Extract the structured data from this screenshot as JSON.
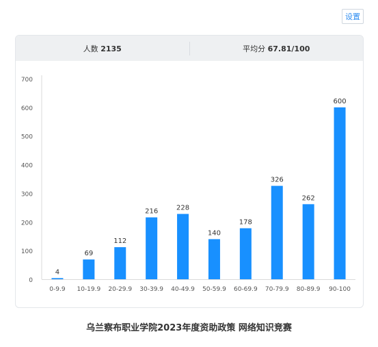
{
  "settings_label": "设置",
  "stats": {
    "count_label": "人数",
    "count_value": "2135",
    "avg_label": "平均分",
    "avg_value": "67.81/100"
  },
  "caption": "乌兰察布职业学院2023年度资助政策 网络知识竞赛",
  "colors": {
    "bar": "#1890ff",
    "grid": "#e8e8e8",
    "axis_text": "#555555"
  },
  "chart_data": {
    "type": "bar",
    "categories": [
      "0-9.9",
      "10-19.9",
      "20-29.9",
      "30-39.9",
      "40-49.9",
      "50-59.9",
      "60-69.9",
      "70-79.9",
      "80-89.9",
      "90-100"
    ],
    "values": [
      4,
      69,
      112,
      216,
      228,
      140,
      178,
      326,
      262,
      600
    ],
    "ylim": [
      0,
      700
    ],
    "yticks": [
      0,
      100,
      200,
      300,
      400,
      500,
      600,
      700
    ],
    "title": "",
    "xlabel": "",
    "ylabel": "",
    "grid": false,
    "data_labels": true
  }
}
